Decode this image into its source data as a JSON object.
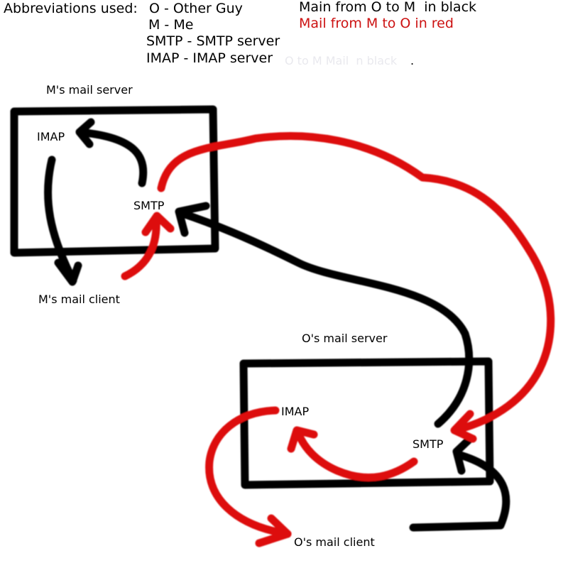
{
  "legend": {
    "title": "Abbreviations used:",
    "entries": [
      "O - Other Guy",
      "M - Me",
      "SMTP - SMTP server",
      "IMAP - IMAP server"
    ]
  },
  "key": {
    "black": "Main from O to M  in black",
    "red": "Mail from M to O in red",
    "faint": "O to M Mail  n black",
    "faint_dot": "."
  },
  "labels": {
    "m_server": "M's mail server",
    "m_imap": "IMAP",
    "m_smtp": "SMTP",
    "m_client": "M's mail client",
    "o_server": "O's mail server",
    "o_imap": "IMAP",
    "o_smtp": "SMTP",
    "o_client": "O's mail client"
  },
  "colors": {
    "black_path": "#000000",
    "red_path": "#dd1111"
  }
}
